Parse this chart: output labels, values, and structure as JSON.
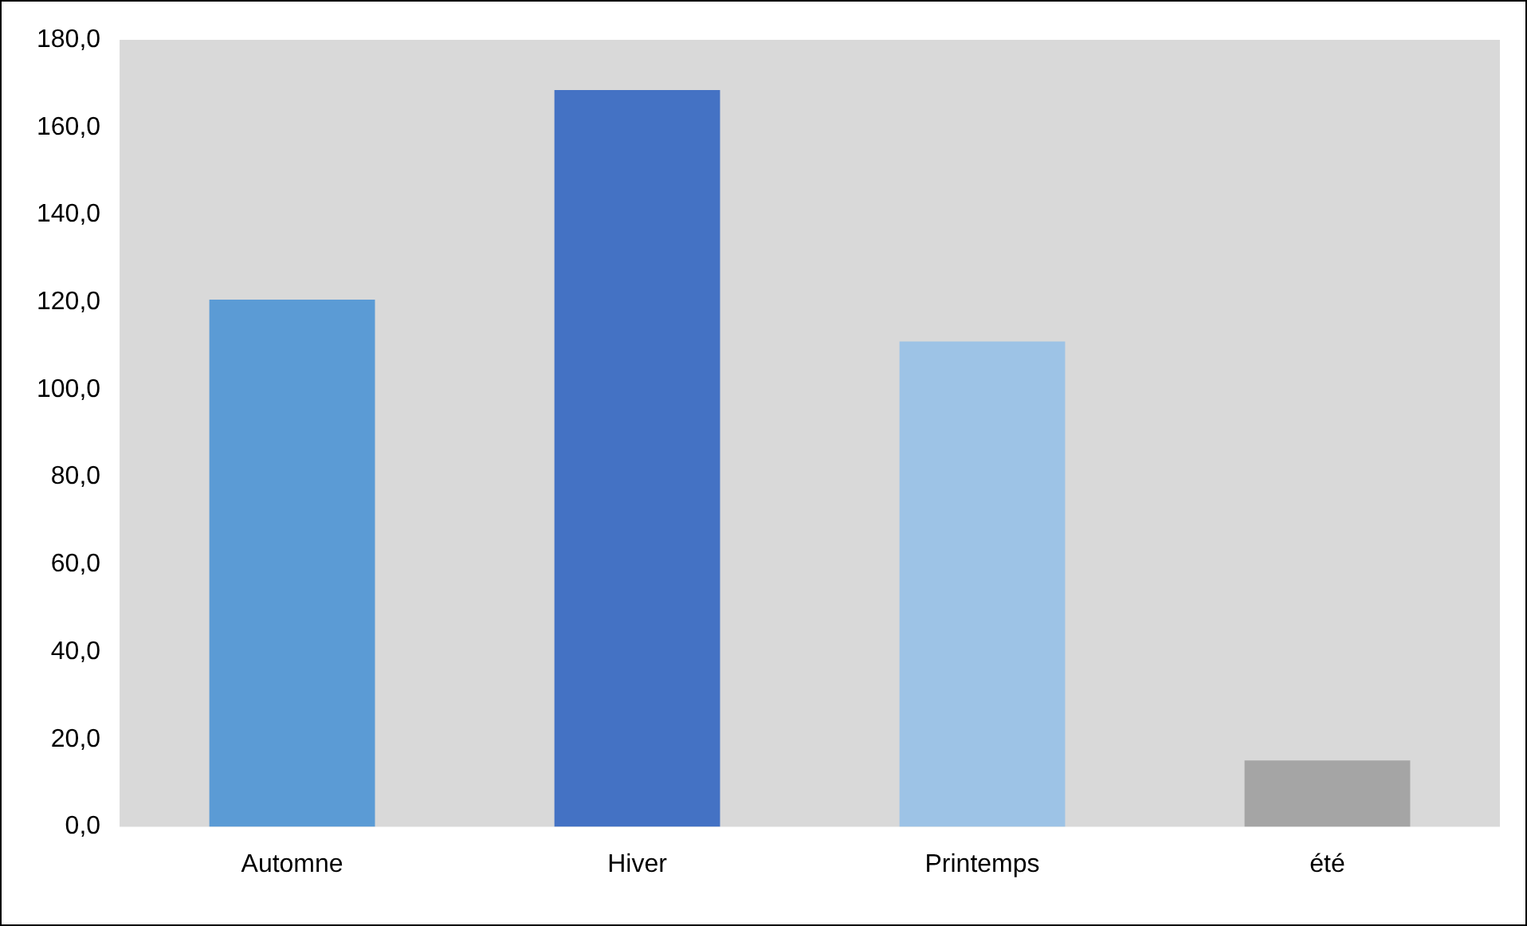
{
  "chart_data": {
    "type": "bar",
    "categories": [
      "Automne",
      "Hiver",
      "Printemps",
      "été"
    ],
    "values": [
      120.6,
      168.5,
      111.0,
      15.2
    ],
    "colors": [
      "#5b9bd5",
      "#4472c4",
      "#9dc3e6",
      "#a5a5a5"
    ],
    "ylim": [
      0,
      180
    ],
    "yticks": [
      {
        "value": 0,
        "label": "0,0"
      },
      {
        "value": 20,
        "label": "20,0"
      },
      {
        "value": 40,
        "label": "40,0"
      },
      {
        "value": 60,
        "label": "60,0"
      },
      {
        "value": 80,
        "label": "80,0"
      },
      {
        "value": 100,
        "label": "100,0"
      },
      {
        "value": 120,
        "label": "120,0"
      },
      {
        "value": 140,
        "label": "140,0"
      },
      {
        "value": 160,
        "label": "160,0"
      },
      {
        "value": 180,
        "label": "180,0"
      }
    ],
    "grid": false,
    "legend": false
  }
}
